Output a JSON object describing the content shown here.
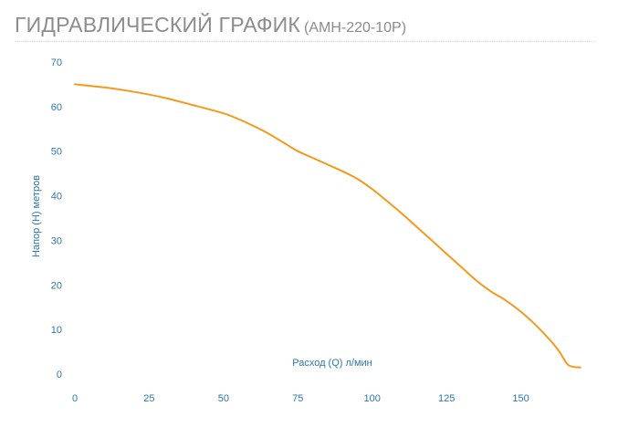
{
  "header": {
    "title": "ГИДРАВЛИЧЕСКИЙ ГРАФИК",
    "model": "(АМН-220-10Р)"
  },
  "colors": {
    "curve": "#f39a1c",
    "axis_text": "#2b77b0",
    "title_text": "#8c8c8c",
    "grid": "#eeeeee"
  },
  "chart_data": {
    "type": "line",
    "xlabel": "Расход (Q) л/мин",
    "ylabel": "Напор (Н) метров",
    "xlim": [
      0,
      175
    ],
    "ylim": [
      0,
      70
    ],
    "x_ticks": [
      0,
      25,
      50,
      75,
      100,
      125,
      150
    ],
    "y_ticks": [
      0,
      10,
      20,
      30,
      40,
      50,
      60,
      70
    ],
    "grid": false,
    "legend": "none",
    "series": [
      {
        "x": [
          0,
          10,
          20,
          30,
          40,
          50,
          55,
          60,
          65,
          70,
          75,
          80,
          85,
          90,
          95,
          100,
          105,
          110,
          115,
          120,
          125,
          130,
          135,
          140,
          145,
          150,
          155,
          160,
          163,
          166,
          170
        ],
        "y": [
          65,
          64.3,
          63.3,
          62,
          60.3,
          58.5,
          57.2,
          55.7,
          54,
          52,
          50,
          48.5,
          47,
          45.5,
          43.8,
          41.5,
          38.8,
          36,
          33,
          30,
          27,
          24,
          21,
          18.5,
          16.5,
          14,
          11,
          7.5,
          5,
          2,
          1.5
        ]
      }
    ]
  }
}
